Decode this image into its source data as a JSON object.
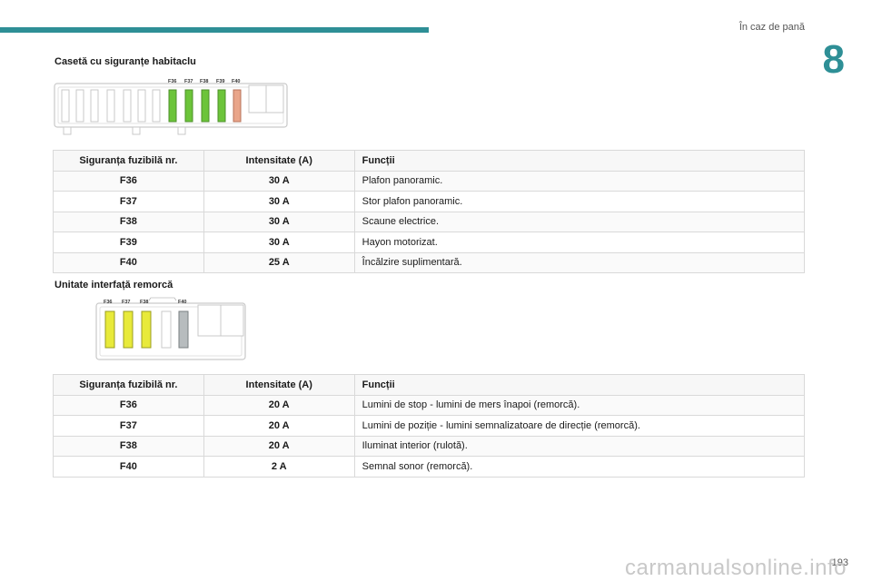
{
  "header": {
    "section": "În caz de pană",
    "chapter": "8"
  },
  "section1": {
    "title": "Casetă cu siguranțe habitaclu",
    "diagram_labels": [
      "F36",
      "F37",
      "F38",
      "F39",
      "F40"
    ],
    "fuse_colors": {
      "F36": "#6cc43a",
      "F37": "#6cc43a",
      "F38": "#6cc43a",
      "F39": "#6cc43a",
      "F40": "#e9a58a"
    },
    "table": {
      "headers": [
        "Siguranța fuzibilă nr.",
        "Intensitate (A)",
        "Funcții"
      ],
      "rows": [
        {
          "fuse": "F36",
          "amp": "30 A",
          "func": "Plafon panoramic."
        },
        {
          "fuse": "F37",
          "amp": "30 A",
          "func": "Stor plafon panoramic."
        },
        {
          "fuse": "F38",
          "amp": "30 A",
          "func": "Scaune electrice."
        },
        {
          "fuse": "F39",
          "amp": "30 A",
          "func": "Hayon motorizat."
        },
        {
          "fuse": "F40",
          "amp": "25 A",
          "func": "Încălzire suplimentară."
        }
      ]
    }
  },
  "section2": {
    "title": "Unitate interfață remorcă",
    "diagram_labels": [
      "F36",
      "F37",
      "F38",
      "F40"
    ],
    "fuse_colors": {
      "F36": "#e8ea3a",
      "F37": "#e8ea3a",
      "F38": "#e8ea3a",
      "F40": "#b7bcbe"
    },
    "table": {
      "headers": [
        "Siguranța fuzibilă nr.",
        "Intensitate (A)",
        "Funcții"
      ],
      "rows": [
        {
          "fuse": "F36",
          "amp": "20 A",
          "func": "Lumini de stop - lumini de mers înapoi (remorcă)."
        },
        {
          "fuse": "F37",
          "amp": "20 A",
          "func": "Lumini de poziție - lumini semnalizatoare de direcție (remorcă)."
        },
        {
          "fuse": "F38",
          "amp": "20 A",
          "func": "Iluminat interior (rulotă)."
        },
        {
          "fuse": "F40",
          "amp": "2 A",
          "func": "Semnal sonor (remorcă)."
        }
      ]
    }
  },
  "footer": {
    "page_number": "193",
    "watermark": "carmanualsonline.info"
  }
}
